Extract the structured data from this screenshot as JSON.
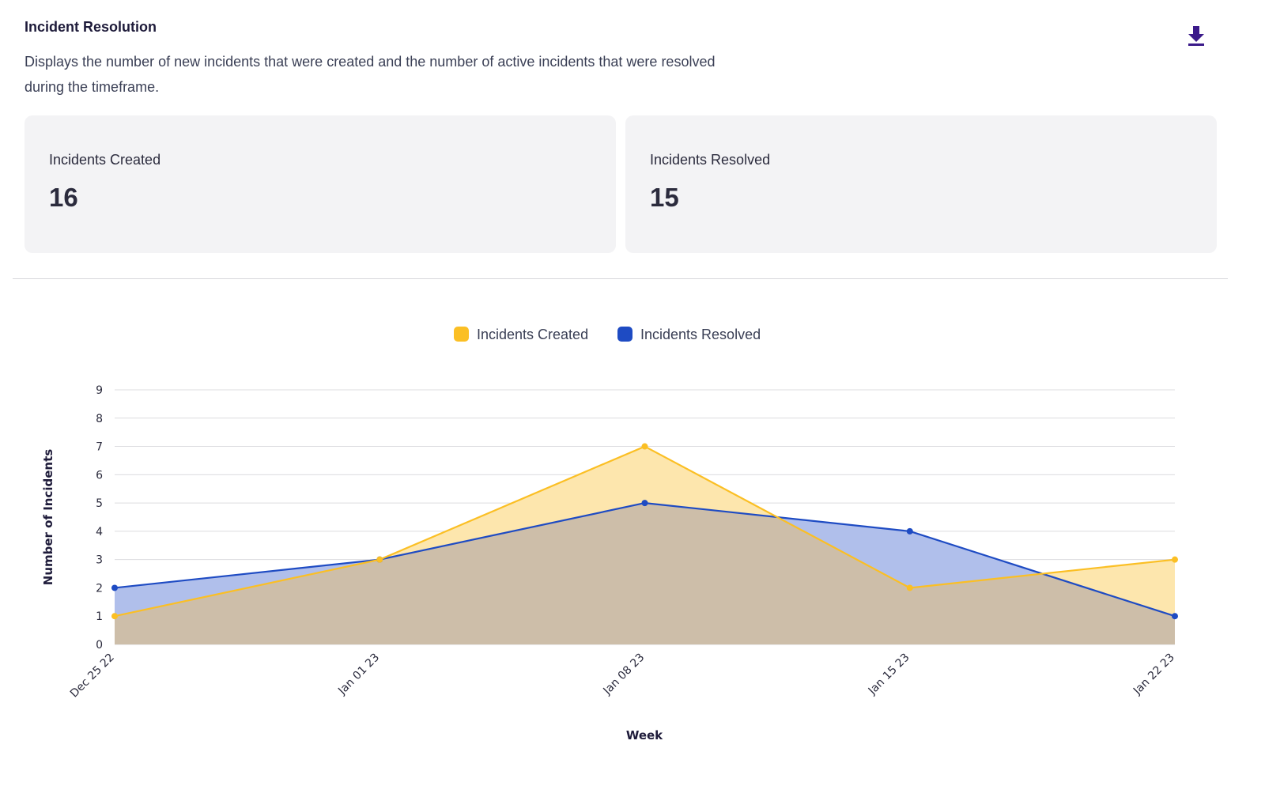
{
  "header": {
    "title": "Incident Resolution",
    "description": "Displays the number of new incidents that were created and the number of active incidents that were resolved during the timeframe.",
    "download_icon": "download-icon"
  },
  "stats": {
    "created": {
      "label": "Incidents Created",
      "value": "16"
    },
    "resolved": {
      "label": "Incidents Resolved",
      "value": "15"
    }
  },
  "colors": {
    "created": "#fbbf24",
    "created_fill": "#fde6ad",
    "resolved": "#1e4bc3",
    "resolved_fill": "#b0bfeb",
    "overlap_fill": "#cdbea9",
    "accent": "#3b1a8a"
  },
  "chart_data": {
    "type": "area",
    "categories": [
      "Dec 25 22",
      "Jan 01 23",
      "Jan 08 23",
      "Jan 15 23",
      "Jan 22 23"
    ],
    "series": [
      {
        "name": "Incidents Created",
        "values": [
          1,
          3,
          7,
          2,
          3
        ]
      },
      {
        "name": "Incidents Resolved",
        "values": [
          2,
          3,
          5,
          4,
          1
        ]
      }
    ],
    "xlabel": "Week",
    "ylabel": "Number of Incidents",
    "yticks": [
      "0",
      "1",
      "2",
      "3",
      "4",
      "5",
      "6",
      "7",
      "8",
      "9"
    ],
    "ylim": [
      0,
      9
    ],
    "grid": true,
    "legend": "top-center"
  }
}
